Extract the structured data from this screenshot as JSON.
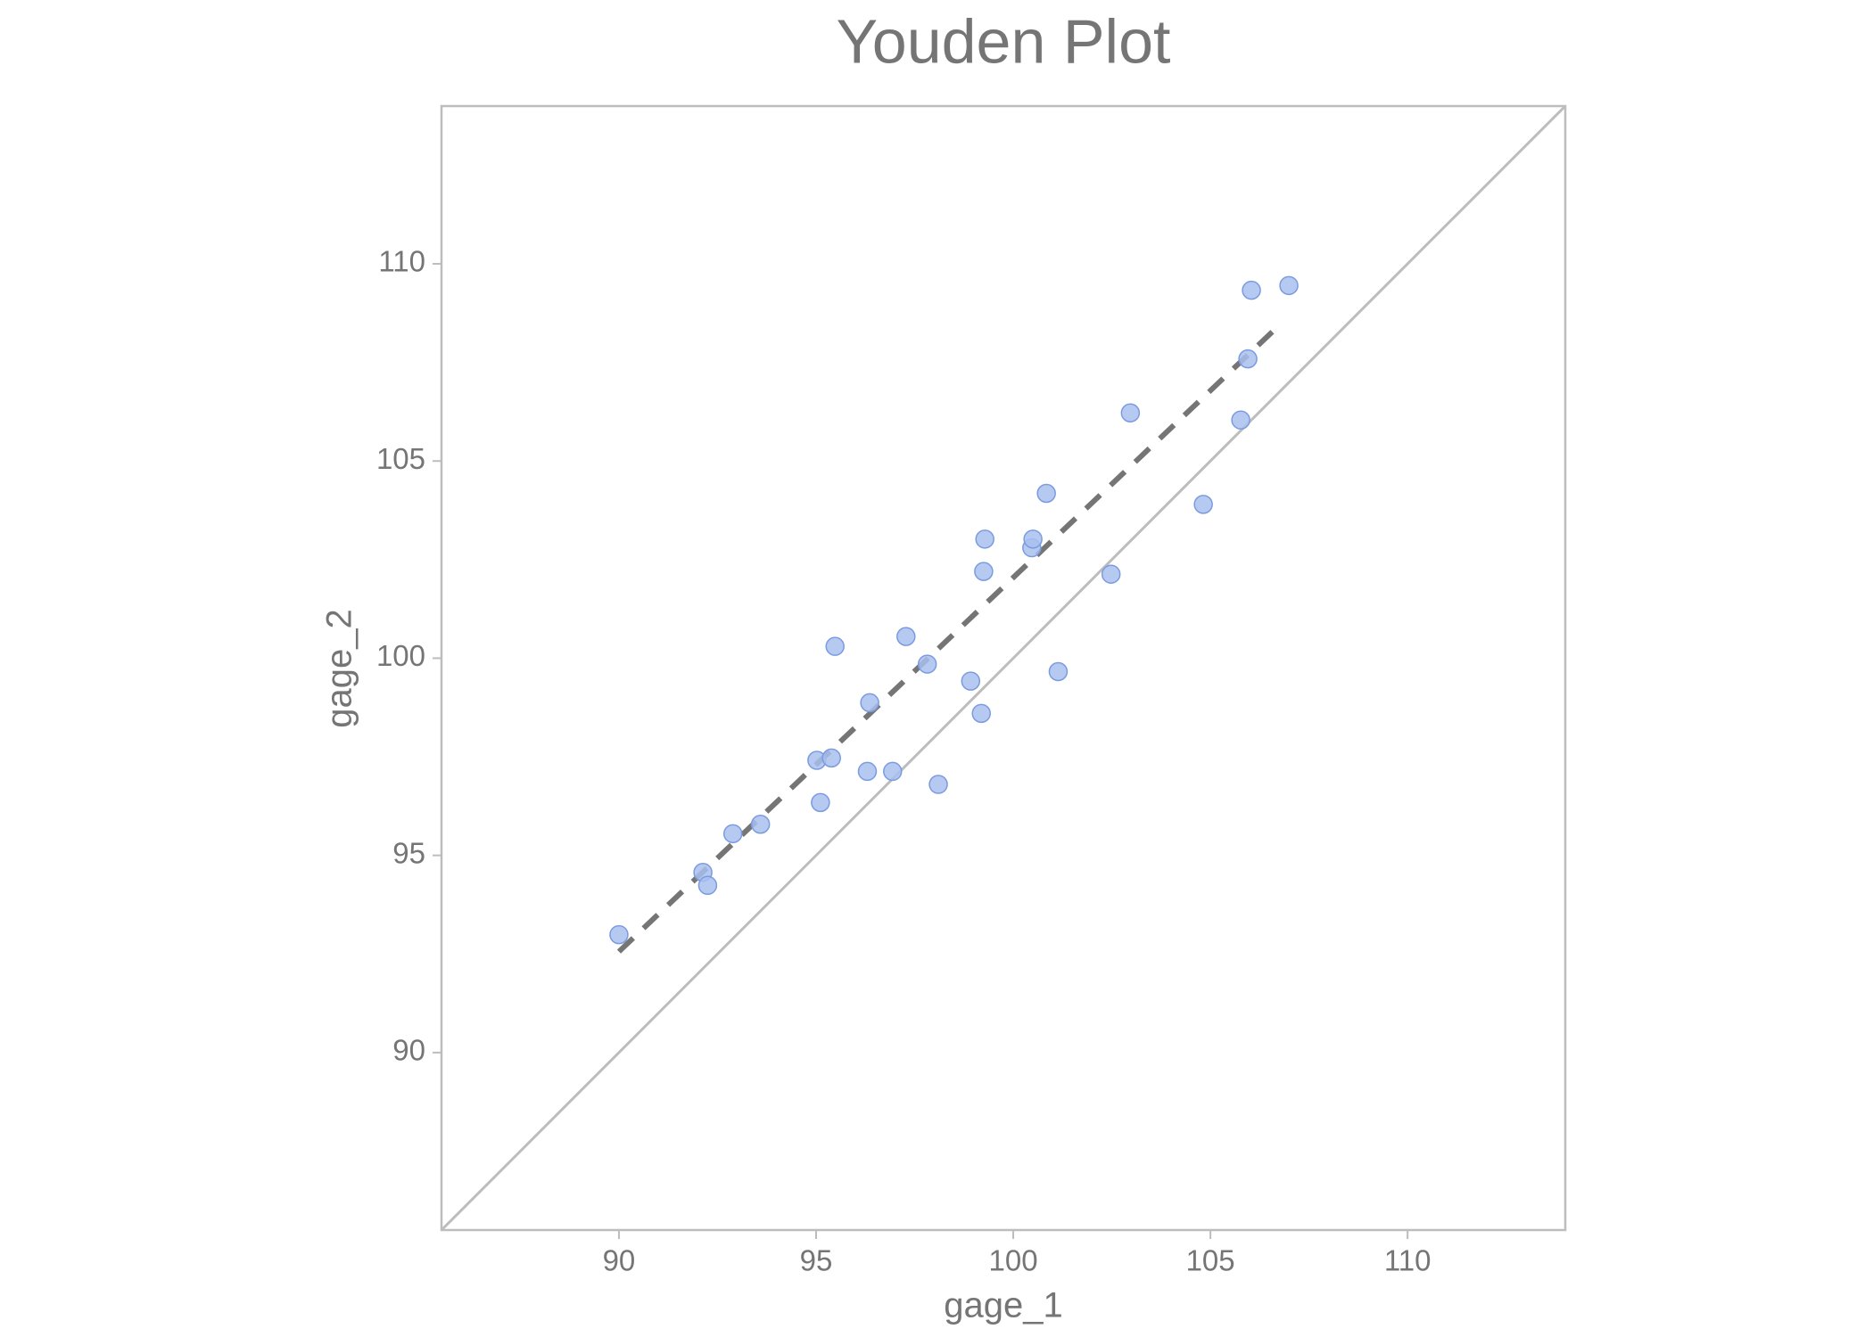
{
  "chart_data": {
    "type": "scatter",
    "title": "Youden Plot",
    "x_label": "gage_1",
    "y_label": "gage_2",
    "xlim": [
      85.5,
      114
    ],
    "ylim": [
      85.5,
      114
    ],
    "xticks": [
      90,
      95,
      100,
      105,
      110
    ],
    "yticks": [
      90,
      95,
      100,
      105,
      110
    ],
    "series": [
      {
        "color": "#a9c0ee",
        "x": [
          90.0,
          92.13,
          92.25,
          92.89,
          93.59,
          95.02,
          95.11,
          95.39,
          95.48,
          96.3,
          96.36,
          96.94,
          97.28,
          97.82,
          98.1,
          98.92,
          99.19,
          99.25,
          99.28,
          100.47,
          100.5,
          100.84,
          101.14,
          102.48,
          102.97,
          104.82,
          105.77,
          105.95,
          106.04,
          106.99
        ],
        "values": [
          92.99,
          94.57,
          94.24,
          95.55,
          95.79,
          97.41,
          96.34,
          97.47,
          100.3,
          97.13,
          98.87,
          97.13,
          100.55,
          99.85,
          96.8,
          99.42,
          98.6,
          102.2,
          103.02,
          102.8,
          103.02,
          104.18,
          99.66,
          102.13,
          106.22,
          103.9,
          106.04,
          107.59,
          109.33,
          109.45
        ]
      }
    ],
    "fit_line": {
      "x": [
        90.0,
        106.68
      ],
      "y": [
        92.56,
        108.38
      ],
      "color": "#757575"
    },
    "identity_line": {
      "color": "#bdbdbd"
    }
  }
}
